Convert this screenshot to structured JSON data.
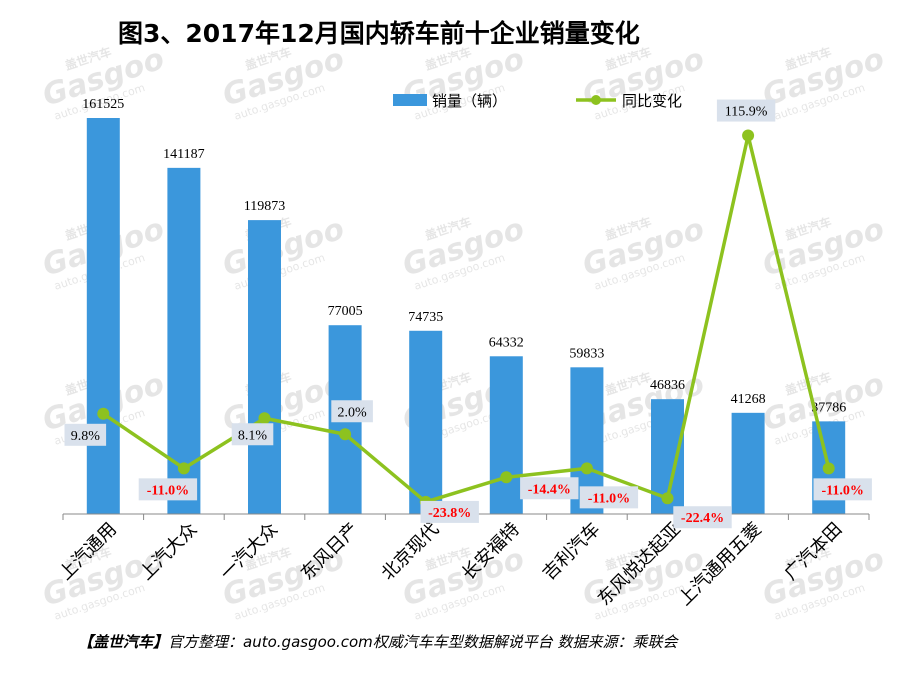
{
  "chart_data": {
    "type": "bar",
    "title": "图3、2017年12月国内轿车前十企业销量变化",
    "categories": [
      "上汽通用",
      "上汽大众",
      "一汽大众",
      "东风日产",
      "北京现代",
      "长安福特",
      "吉利汽车",
      "东风悦达起亚",
      "上汽通用五菱",
      "广汽本田"
    ],
    "series": [
      {
        "name": "销量（辆）",
        "type": "bar",
        "color": "#3B97DC",
        "values": [
          161525,
          141187,
          119873,
          77005,
          74735,
          64332,
          59833,
          46836,
          41268,
          37786
        ],
        "labels": [
          "161525",
          "141187",
          "119873",
          "77005",
          "74735",
          "64332",
          "59833",
          "46836",
          "41268",
          "37786"
        ]
      },
      {
        "name": "同比变化",
        "type": "line",
        "color": "#8DC21F",
        "values": [
          9.8,
          -11.0,
          8.1,
          2.0,
          -23.8,
          -14.4,
          -11.0,
          -22.4,
          115.9,
          -11.0
        ],
        "labels": [
          "9.8%",
          "-11.0%",
          "8.1%",
          "2.0%",
          "-23.8%",
          "-14.4%",
          "-11.0%",
          "-22.4%",
          "115.9%",
          "-11.0%"
        ]
      }
    ],
    "legend": "top-center",
    "grid": false,
    "label_colors": {
      "positive": "#000000",
      "negative": "#FF0000"
    },
    "label_bg": "#D9E1EC"
  },
  "watermark": {
    "brand_cn": "盖世汽车",
    "brand_en": "Gasgoo",
    "url": "auto.gasgoo.com"
  },
  "footer": {
    "brand": "【盖世汽车】",
    "text": "官方整理：auto.gasgoo.com权威汽车车型数据解说平台 数据来源：乘联会"
  }
}
